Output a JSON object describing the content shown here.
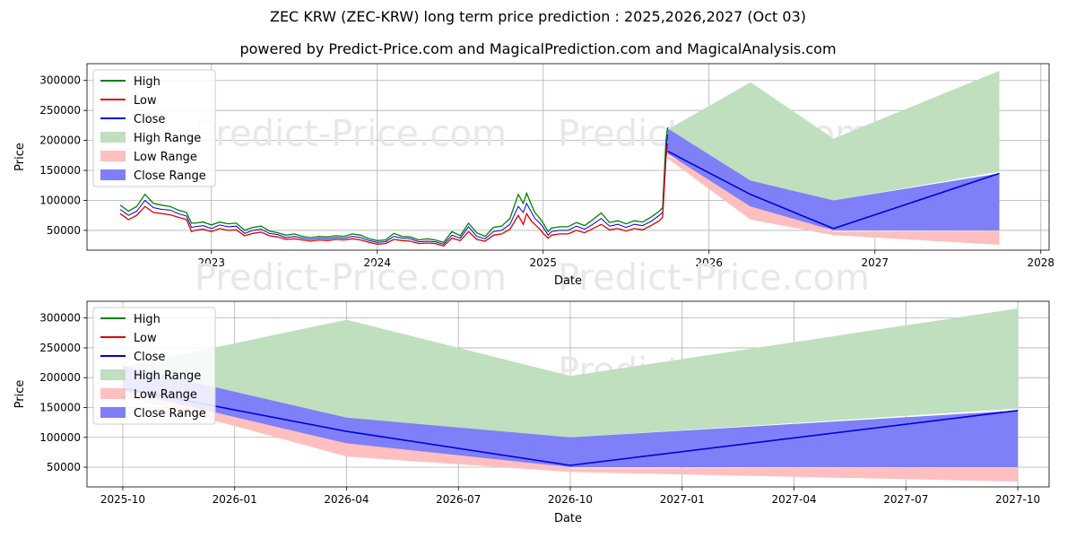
{
  "title": "ZEC KRW (ZEC-KRW) long term price prediction : 2025,2026,2027 (Oct 03)",
  "subtitle": "powered by Predict-Price.com and MagicalPrediction.com and MagicalAnalysis.com",
  "watermark": "Predict-Price.com",
  "colors": {
    "high": "#008000",
    "low": "#e00000",
    "close": "#0000dd",
    "high_range": "#bfdfbf",
    "low_range": "#ffbfbf",
    "close_range": "#7f7ff8",
    "grid": "#b0b0b0",
    "watermark": "#e8e8e8"
  },
  "legend": [
    "High",
    "Low",
    "Close",
    "High Range",
    "Low Range",
    "Close Range"
  ],
  "chart_data": [
    {
      "type": "line",
      "name": "full-history",
      "xlabel": "Date",
      "ylabel": "Price",
      "xlim": [
        2022.25,
        2028.05
      ],
      "ylim": [
        17000,
        328000
      ],
      "x_ticks": [
        2023,
        2024,
        2025,
        2026,
        2027,
        2028
      ],
      "x_tick_labels": [
        "2023",
        "2024",
        "2025",
        "2026",
        "2027",
        "2028"
      ],
      "y_ticks": [
        50000,
        100000,
        150000,
        200000,
        250000,
        300000
      ],
      "y_tick_labels": [
        "50000",
        "100000",
        "150000",
        "200000",
        "250000",
        "300000"
      ],
      "history": {
        "x": [
          2022.45,
          2022.5,
          2022.55,
          2022.6,
          2022.65,
          2022.7,
          2022.75,
          2022.8,
          2022.85,
          2022.88,
          2022.9,
          2022.95,
          2023.0,
          2023.05,
          2023.1,
          2023.15,
          2023.2,
          2023.25,
          2023.3,
          2023.35,
          2023.4,
          2023.45,
          2023.5,
          2023.55,
          2023.6,
          2023.65,
          2023.7,
          2023.75,
          2023.8,
          2023.85,
          2023.9,
          2023.95,
          2024.0,
          2024.05,
          2024.1,
          2024.15,
          2024.2,
          2024.25,
          2024.3,
          2024.35,
          2024.4,
          2024.45,
          2024.5,
          2024.55,
          2024.6,
          2024.65,
          2024.7,
          2024.75,
          2024.8,
          2024.85,
          2024.88,
          2024.9,
          2024.93,
          2024.95,
          2024.98,
          2025.0,
          2025.03,
          2025.05,
          2025.1,
          2025.15,
          2025.2,
          2025.25,
          2025.3,
          2025.35,
          2025.4,
          2025.45,
          2025.5,
          2025.55,
          2025.6,
          2025.65,
          2025.7,
          2025.72,
          2025.74,
          2025.75
        ],
        "close": [
          85000,
          75000,
          82000,
          100000,
          88000,
          85000,
          84000,
          78000,
          74000,
          55000,
          56000,
          58000,
          53000,
          59000,
          56000,
          57000,
          45000,
          50000,
          52000,
          45000,
          43000,
          38000,
          40000,
          37000,
          35000,
          37000,
          36000,
          38000,
          37000,
          40000,
          38000,
          33000,
          30000,
          31000,
          40000,
          37000,
          36000,
          31000,
          32000,
          31000,
          27000,
          42000,
          37000,
          56000,
          40000,
          36000,
          48000,
          50000,
          60000,
          90000,
          80000,
          95000,
          80000,
          70000,
          62000,
          55000,
          42000,
          48000,
          50000,
          50000,
          57000,
          52000,
          60000,
          70000,
          57000,
          60000,
          55000,
          60000,
          58000,
          65000,
          75000,
          80000,
          180000,
          210000
        ],
        "high": [
          92000,
          82000,
          90000,
          110000,
          95000,
          92000,
          90000,
          84000,
          80000,
          62000,
          62000,
          64000,
          59000,
          64000,
          61000,
          62000,
          50000,
          55000,
          57000,
          49000,
          46000,
          42000,
          44000,
          40000,
          38000,
          40000,
          39000,
          41000,
          40000,
          44000,
          42000,
          36000,
          33000,
          34000,
          45000,
          40000,
          39000,
          34000,
          36000,
          34000,
          30000,
          48000,
          41000,
          62000,
          46000,
          40000,
          55000,
          57000,
          70000,
          110000,
          95000,
          112000,
          92000,
          80000,
          70000,
          62000,
          48000,
          54000,
          56000,
          56000,
          63000,
          58000,
          68000,
          79000,
          63000,
          66000,
          61000,
          66000,
          64000,
          72000,
          82000,
          88000,
          200000,
          222000
        ],
        "low": [
          78000,
          68000,
          75000,
          90000,
          80000,
          78000,
          76000,
          72000,
          68000,
          48000,
          50000,
          52000,
          48000,
          53000,
          50000,
          51000,
          41000,
          45000,
          47000,
          41000,
          39000,
          35000,
          36000,
          34000,
          32000,
          34000,
          33000,
          35000,
          34000,
          36000,
          34000,
          30000,
          27000,
          28000,
          35000,
          33000,
          32000,
          28000,
          29000,
          28000,
          24000,
          37000,
          33000,
          48000,
          35000,
          32000,
          42000,
          44000,
          52000,
          75000,
          60000,
          78000,
          65000,
          60000,
          52000,
          45000,
          37000,
          42000,
          44000,
          44000,
          50000,
          46000,
          53000,
          60000,
          51000,
          53000,
          49000,
          53000,
          51000,
          58000,
          66000,
          72000,
          170000,
          195000
        ]
      },
      "forecast": {
        "x": [
          2025.75,
          2026.25,
          2026.75,
          2027.75
        ],
        "close": [
          182000,
          110000,
          53000,
          145000
        ],
        "high_range": [
          218000,
          297000,
          203000,
          316000
        ],
        "high_range_low": [
          176000,
          130000,
          100000,
          148000
        ],
        "close_range": [
          220000,
          133000,
          100000,
          145000
        ],
        "close_range_low": [
          178000,
          90000,
          50000,
          50000
        ],
        "low_range": [
          175000,
          108000,
          48000,
          49000
        ],
        "low_range_low": [
          170000,
          68000,
          42000,
          26000
        ]
      }
    },
    {
      "type": "line",
      "name": "forecast-zoom",
      "xlabel": "Date",
      "ylabel": "Price",
      "xlim": [
        2025.67,
        2027.82
      ],
      "ylim": [
        17000,
        328000
      ],
      "x_ticks": [
        2025.75,
        2026.0,
        2026.25,
        2026.5,
        2026.75,
        2027.0,
        2027.25,
        2027.5,
        2027.75
      ],
      "x_tick_labels": [
        "2025-10",
        "2026-01",
        "2026-04",
        "2026-07",
        "2026-10",
        "2027-01",
        "2027-04",
        "2027-07",
        "2027-10"
      ],
      "y_ticks": [
        50000,
        100000,
        150000,
        200000,
        250000,
        300000
      ],
      "y_tick_labels": [
        "50000",
        "100000",
        "150000",
        "200000",
        "250000",
        "300000"
      ],
      "forecast": {
        "x": [
          2025.75,
          2026.25,
          2026.75,
          2027.75
        ],
        "close": [
          182000,
          110000,
          53000,
          145000
        ],
        "high_range": [
          218000,
          297000,
          203000,
          316000
        ],
        "high_range_low": [
          176000,
          130000,
          100000,
          148000
        ],
        "close_range": [
          220000,
          133000,
          100000,
          145000
        ],
        "close_range_low": [
          178000,
          90000,
          50000,
          50000
        ],
        "low_range": [
          175000,
          108000,
          48000,
          49000
        ],
        "low_range_low": [
          170000,
          68000,
          42000,
          26000
        ]
      }
    }
  ]
}
